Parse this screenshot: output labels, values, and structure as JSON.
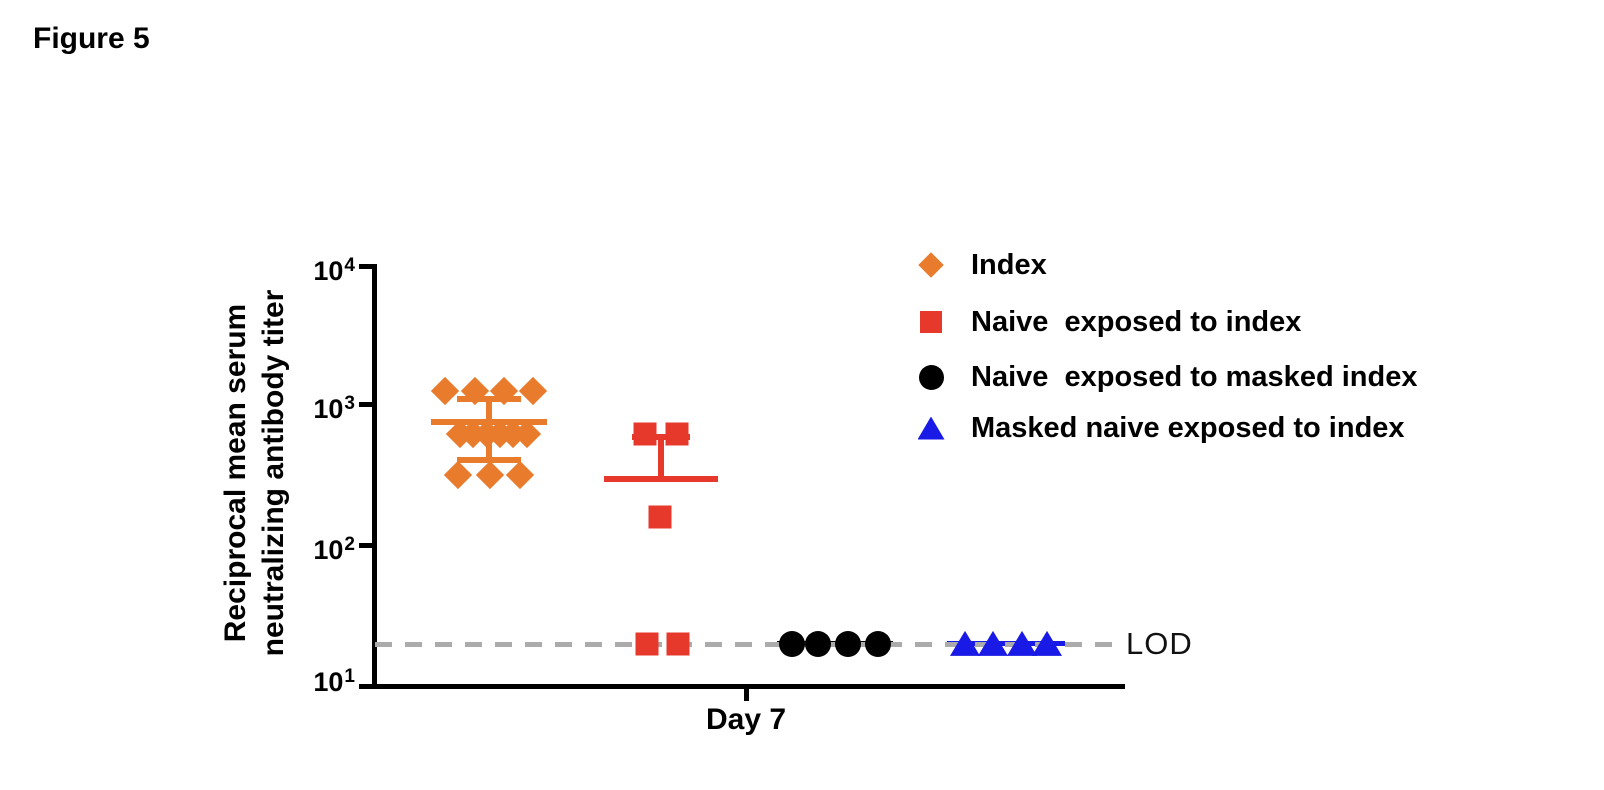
{
  "figure_title": "Figure 5",
  "axes": {
    "ylabel_line1": "Reciprocal mean serum",
    "ylabel_line2": "neutralizing antibody titer",
    "xlabel": "Day 7",
    "y_ticks": [
      {
        "base": "10",
        "exp": "4"
      },
      {
        "base": "10",
        "exp": "3"
      },
      {
        "base": "10",
        "exp": "2"
      },
      {
        "base": "10",
        "exp": "1"
      }
    ]
  },
  "lod": {
    "label": "LOD",
    "value": 20,
    "line_color": "#ABABAB"
  },
  "legend": {
    "items": [
      {
        "label": "Index"
      },
      {
        "label": "Naive  exposed to index"
      },
      {
        "label": "Naive  exposed to masked index"
      },
      {
        "label": "Masked naive exposed to index"
      }
    ]
  },
  "chart_data": {
    "type": "scatter",
    "title": "Figure 5",
    "xlabel": "Day 7",
    "ylabel": "Reciprocal mean serum neutralizing antibody titer",
    "y_scale": "log10",
    "ylim": [
      10,
      10000
    ],
    "y_ticks": [
      10,
      100,
      1000,
      10000
    ],
    "x_categories": [
      "Day 7"
    ],
    "lod_value": 20,
    "legend_position": "upper right",
    "grid": false,
    "series": [
      {
        "name": "Index",
        "marker": "diamond",
        "color": "#E87B2C",
        "mean": 770,
        "sd_low": 410,
        "sd_high": 1120,
        "points": [
          [
            -44,
            1280
          ],
          [
            -14,
            1280
          ],
          [
            15,
            1280
          ],
          [
            44,
            1280
          ],
          [
            -29,
            630
          ],
          [
            -16,
            630
          ],
          [
            -2,
            630
          ],
          [
            11,
            630
          ],
          [
            24,
            630
          ],
          [
            38,
            630
          ],
          [
            -31,
            320
          ],
          [
            1,
            320
          ],
          [
            31,
            320
          ]
        ]
      },
      {
        "name": "Naive  exposed to index",
        "marker": "square",
        "color": "#E6392B",
        "mean": 300,
        "sd_low": null,
        "sd_high": 600,
        "points": [
          [
            -16,
            630
          ],
          [
            16,
            630
          ],
          [
            -1,
            160
          ],
          [
            -14,
            20
          ],
          [
            17,
            20
          ]
        ]
      },
      {
        "name": "Naive  exposed to masked index",
        "marker": "circle",
        "color": "#000000",
        "mean": 20,
        "sd_low": null,
        "sd_high": null,
        "points": [
          [
            -43,
            20
          ],
          [
            -17,
            20
          ],
          [
            13,
            20
          ],
          [
            43,
            20
          ]
        ]
      },
      {
        "name": "Masked naive exposed to index",
        "marker": "triangle",
        "color": "#1A1AE6",
        "mean": 20,
        "sd_low": null,
        "sd_high": null,
        "points": [
          [
            -41,
            20
          ],
          [
            -13,
            20
          ],
          [
            16,
            20
          ],
          [
            41,
            20
          ]
        ]
      }
    ]
  }
}
